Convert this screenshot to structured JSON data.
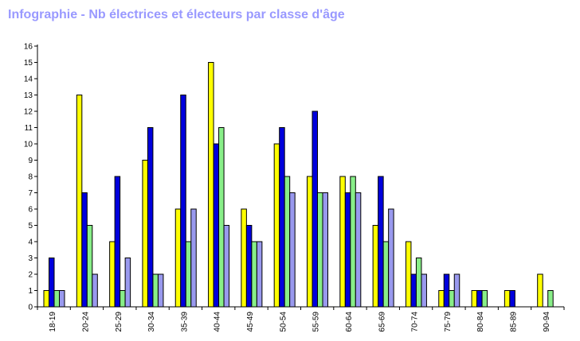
{
  "chart_data": {
    "type": "bar",
    "title": "Infographie - Nb électrices et électeurs par classe d'âge",
    "xlabel": "",
    "ylabel": "",
    "ylim": [
      0,
      16
    ],
    "yticks": [
      0,
      1,
      2,
      3,
      4,
      5,
      6,
      7,
      8,
      9,
      10,
      11,
      12,
      13,
      14,
      15,
      16
    ],
    "grid": false,
    "categories": [
      "18-19",
      "20-24",
      "25-29",
      "30-34",
      "35-39",
      "40-44",
      "45-49",
      "50-54",
      "55-59",
      "60-64",
      "65-69",
      "70-74",
      "75-79",
      "80-84",
      "85-89",
      "90-94"
    ],
    "series": [
      {
        "color": "#ffff00",
        "values": [
          1,
          13,
          4,
          9,
          6,
          15,
          6,
          10,
          8,
          8,
          5,
          4,
          1,
          1,
          1,
          2
        ]
      },
      {
        "color": "#0000dd",
        "values": [
          3,
          7,
          8,
          11,
          13,
          10,
          5,
          11,
          12,
          7,
          8,
          2,
          2,
          1,
          1,
          0
        ]
      },
      {
        "color": "#88ee88",
        "values": [
          1,
          5,
          1,
          2,
          4,
          11,
          4,
          8,
          7,
          8,
          4,
          3,
          1,
          1,
          0,
          1
        ]
      },
      {
        "color": "#9999ee",
        "values": [
          1,
          2,
          3,
          2,
          6,
          5,
          4,
          7,
          7,
          7,
          6,
          2,
          2,
          0,
          0,
          0
        ]
      }
    ]
  }
}
